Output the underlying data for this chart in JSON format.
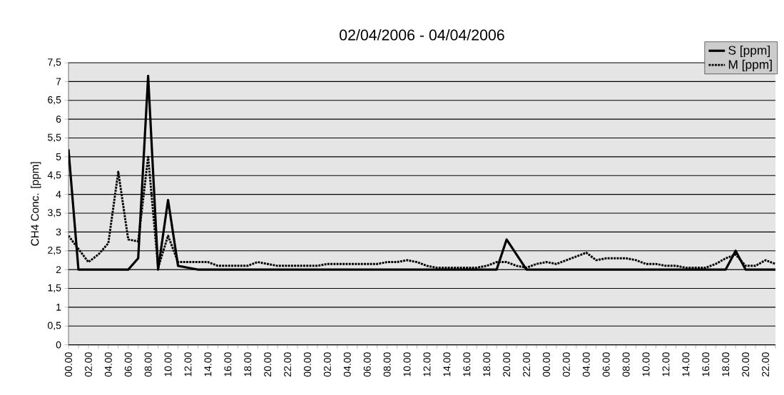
{
  "chart_data": {
    "type": "line",
    "title": "02/04/2006 - 04/04/2006",
    "ylabel": "CH4 Conc. [ppm]",
    "categories": [
      "00.00",
      null,
      "02.00",
      null,
      "04.00",
      null,
      "06.00",
      null,
      "08.00",
      null,
      "10.00",
      null,
      "12.00",
      null,
      "14.00",
      null,
      "16.00",
      null,
      "18.00",
      null,
      "20.00",
      null,
      "22.00",
      null,
      "00.00",
      null,
      "02.00",
      null,
      "04.00",
      null,
      "06.00",
      null,
      "08.00",
      null,
      "10.00",
      null,
      "12.00",
      null,
      "14.00",
      null,
      "16.00",
      null,
      "18.00",
      null,
      "20.00",
      null,
      "22.00",
      null,
      "00.00",
      null,
      "02.00",
      null,
      "04.00",
      null,
      "06.00",
      null,
      "08.00",
      null,
      "10.00",
      null,
      "12.00",
      null,
      "14.00",
      null,
      "16.00",
      null,
      "18.00",
      null,
      "20.00",
      null,
      "22.00",
      null
    ],
    "series": [
      {
        "name": "S [ppm]",
        "color": "#000000",
        "line_style": "solid",
        "values": [
          5.2,
          2,
          2,
          2,
          2,
          2,
          2,
          2.3,
          7.15,
          2,
          3.85,
          2.1,
          2.05,
          2,
          2,
          2,
          2,
          2,
          2,
          2,
          2,
          2,
          2,
          2,
          2,
          2,
          2,
          2,
          2,
          2,
          2,
          2,
          2,
          2,
          2,
          2,
          2,
          2,
          2,
          2,
          2,
          2,
          2,
          2,
          2.8,
          2.4,
          2,
          2,
          2,
          2,
          2,
          2,
          2,
          2,
          2,
          2,
          2,
          2,
          2,
          2,
          2,
          2,
          2,
          2,
          2,
          2,
          2,
          2.5,
          2,
          2,
          2,
          2
        ]
      },
      {
        "name": "M [ppm]",
        "color": "#000000",
        "line_style": "dotted",
        "values": [
          2.9,
          2.55,
          2.2,
          2.4,
          2.7,
          4.6,
          2.8,
          2.75,
          5.0,
          2.05,
          2.9,
          2.2,
          2.2,
          2.2,
          2.2,
          2.1,
          2.1,
          2.1,
          2.1,
          2.2,
          2.15,
          2.1,
          2.1,
          2.1,
          2.1,
          2.1,
          2.15,
          2.15,
          2.15,
          2.15,
          2.15,
          2.15,
          2.2,
          2.2,
          2.25,
          2.2,
          2.1,
          2.05,
          2.05,
          2.05,
          2.05,
          2.05,
          2.1,
          2.2,
          2.2,
          2.1,
          2.05,
          2.15,
          2.2,
          2.15,
          2.25,
          2.35,
          2.45,
          2.25,
          2.3,
          2.3,
          2.3,
          2.25,
          2.15,
          2.15,
          2.1,
          2.1,
          2.05,
          2.05,
          2.05,
          2.15,
          2.3,
          2.4,
          2.1,
          2.1,
          2.25,
          2.15
        ]
      }
    ],
    "ylim": [
      0,
      7.5
    ],
    "yticks": [
      0,
      {
        "value": 0.5,
        "label": "0,5"
      },
      1,
      {
        "value": 1.5,
        "label": "1,5"
      },
      2,
      {
        "value": 2.5,
        "label": "2,5"
      },
      3,
      {
        "value": 3.5,
        "label": "3,5"
      },
      4,
      {
        "value": 4.5,
        "label": "4,5"
      },
      5,
      {
        "value": 5.5,
        "label": "5,5"
      },
      6,
      {
        "value": 6.5,
        "label": "6,5"
      },
      7,
      {
        "value": 7.5,
        "label": "7,5"
      }
    ],
    "grid": "y",
    "legend": "top right"
  }
}
